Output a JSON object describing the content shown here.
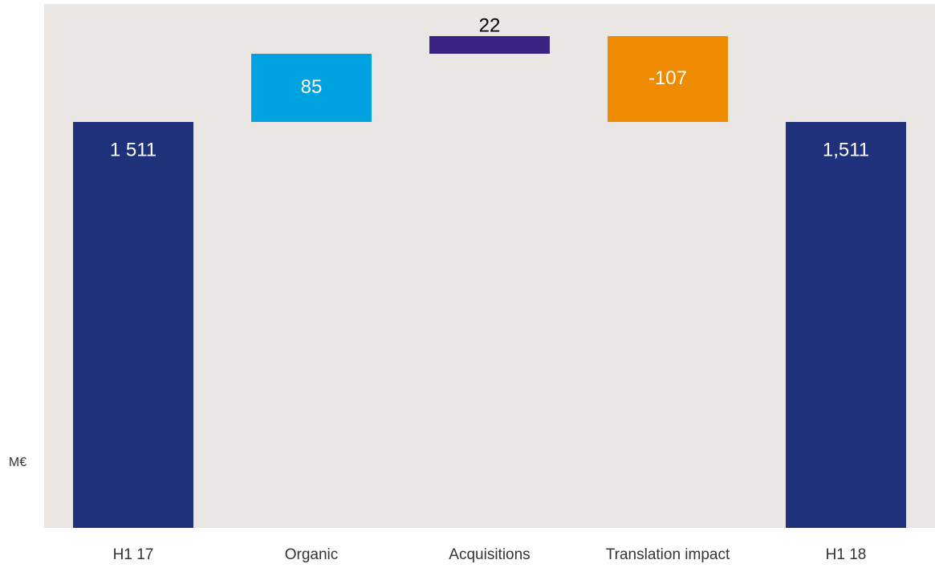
{
  "chart_data": {
    "type": "waterfall",
    "y_label": "M€",
    "categories": [
      "H1 17",
      "Organic",
      "Acquisitions",
      "Translation impact",
      "H1 18"
    ],
    "values": [
      1511,
      85,
      22,
      -107,
      1511
    ],
    "value_labels": [
      "1 511",
      "85",
      "22",
      "-107",
      "1,511"
    ],
    "colors": [
      "#1f317a",
      "#00a3e0",
      "#3b2383",
      "#ee8b00",
      "#1f317a"
    ],
    "ylim": [
      1005,
      1658
    ]
  }
}
